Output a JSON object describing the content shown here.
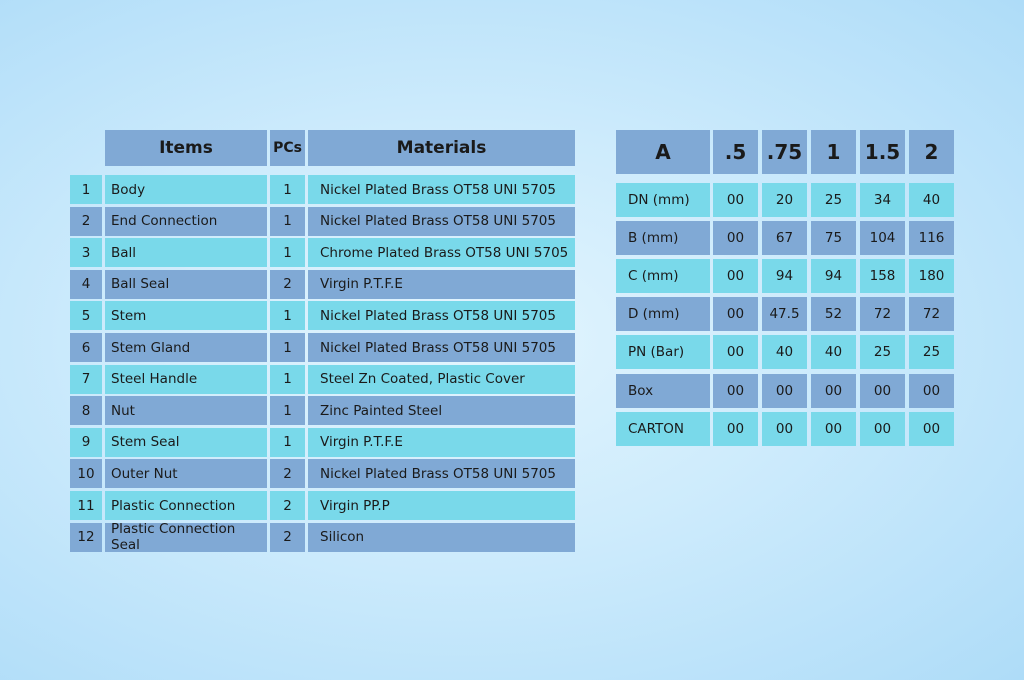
{
  "parts_table": {
    "headers": {
      "items": "Items",
      "pcs": "PCs",
      "materials": "Materials"
    },
    "rows": [
      {
        "no": "1",
        "item": "Body",
        "pcs": "1",
        "material": "Nickel Plated Brass OT58 UNI 5705"
      },
      {
        "no": "2",
        "item": "End Connection",
        "pcs": "1",
        "material": "Nickel Plated Brass OT58 UNI 5705"
      },
      {
        "no": "3",
        "item": "Ball",
        "pcs": "1",
        "material": "Chrome Plated Brass OT58 UNI 5705"
      },
      {
        "no": "4",
        "item": "Ball Seal",
        "pcs": "2",
        "material": "Virgin P.T.F.E"
      },
      {
        "no": "5",
        "item": "Stem",
        "pcs": "1",
        "material": "Nickel Plated Brass OT58 UNI 5705"
      },
      {
        "no": "6",
        "item": "Stem Gland",
        "pcs": "1",
        "material": "Nickel Plated Brass OT58 UNI 5705"
      },
      {
        "no": "7",
        "item": "Steel Handle",
        "pcs": "1",
        "material": "Steel Zn Coated, Plastic Cover"
      },
      {
        "no": "8",
        "item": "Nut",
        "pcs": "1",
        "material": "Zinc Painted Steel"
      },
      {
        "no": "9",
        "item": "Stem Seal",
        "pcs": "1",
        "material": "Virgin P.T.F.E"
      },
      {
        "no": "10",
        "item": "Outer Nut",
        "pcs": "2",
        "material": "Nickel Plated Brass OT58 UNI 5705"
      },
      {
        "no": "11",
        "item": "Plastic Connection",
        "pcs": "2",
        "material": "Virgin PP.P"
      },
      {
        "no": "12",
        "item": "Plastic Connection Seal",
        "pcs": "2",
        "material": "Silicon"
      }
    ]
  },
  "dims_table": {
    "headers": [
      "A",
      ".5",
      ".75",
      "1",
      "1.5",
      "2"
    ],
    "rows": [
      {
        "label": "DN (mm)",
        "values": [
          "00",
          "20",
          "25",
          "34",
          "40"
        ]
      },
      {
        "label": "B (mm)",
        "values": [
          "00",
          "67",
          "75",
          "104",
          "116"
        ]
      },
      {
        "label": "C (mm)",
        "values": [
          "00",
          "94",
          "94",
          "158",
          "180"
        ]
      },
      {
        "label": "D (mm)",
        "values": [
          "00",
          "47.5",
          "52",
          "72",
          "72"
        ]
      },
      {
        "label": "PN (Bar)",
        "values": [
          "00",
          "40",
          "40",
          "25",
          "25"
        ]
      },
      {
        "label": "Box",
        "values": [
          "00",
          "00",
          "00",
          "00",
          "00"
        ]
      },
      {
        "label": "CARTON",
        "values": [
          "00",
          "00",
          "00",
          "00",
          "00"
        ]
      }
    ]
  },
  "colors": {
    "cyan_row": "#79d9ea",
    "blue_row": "#80a9d5",
    "header": "#80a9d5"
  }
}
